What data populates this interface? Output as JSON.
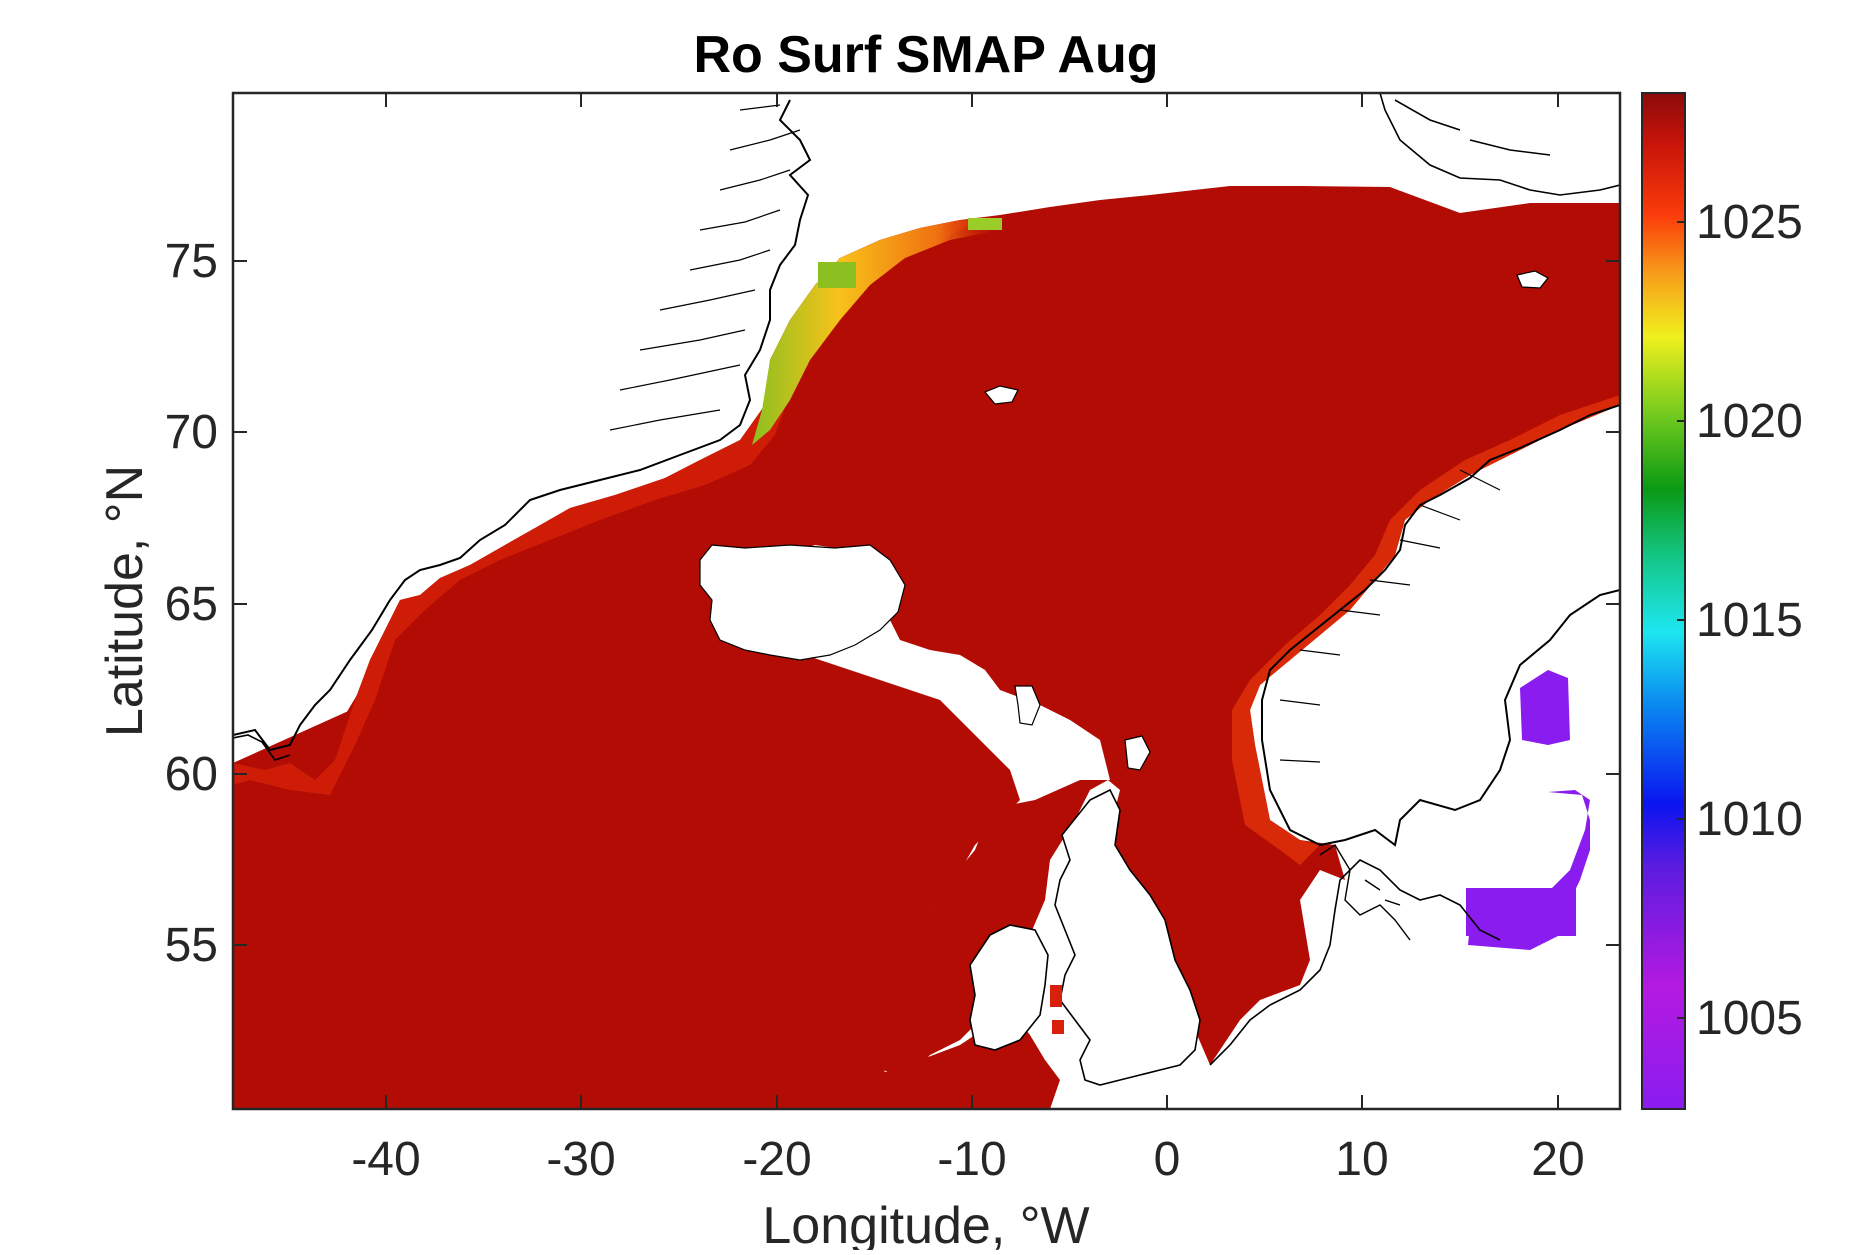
{
  "figure": {
    "title": "Ro Surf SMAP Aug",
    "xlabel": "Longitude, °W",
    "ylabel": "Latitude, °N"
  },
  "chart_data": {
    "type": "heatmap",
    "title": "Ro Surf SMAP Aug",
    "xlabel": "Longitude, °W",
    "ylabel": "Latitude, °N",
    "xlim": [
      -48,
      23
    ],
    "ylim": [
      50,
      80
    ],
    "xticks": [
      -40,
      -30,
      -20,
      -10,
      0,
      10,
      20
    ],
    "xtick_labels": [
      "-40",
      "-30",
      "-20",
      "-10",
      "0",
      "10",
      "20"
    ],
    "yticks": [
      55,
      60,
      65,
      70,
      75
    ],
    "ytick_labels": [
      "55",
      "60",
      "65",
      "70",
      "75"
    ],
    "colorbar": {
      "range": [
        1002.5,
        1028.0
      ],
      "ticks": [
        1005,
        1010,
        1015,
        1020,
        1025
      ],
      "tick_labels": [
        "1005",
        "1010",
        "1015",
        "1020",
        "1025"
      ],
      "colormap": "jet-like (purple → blue → cyan → green → yellow → red → dark red)"
    },
    "typical_open_ocean_value": 1027.5,
    "coastal_values_east_greenland": [
      1020,
      1023,
      1025
    ],
    "baltic_value": 1004,
    "grid": false,
    "legend": "none"
  },
  "colors": {
    "ocean_dark_red": "#b20c05",
    "ocean_red": "#c81a08",
    "coastal_orange": "#f07010",
    "coastal_yellow": "#f7c21a",
    "coastal_green": "#8cc020",
    "baltic_purple": "#8a1cf0",
    "land": "#ffffff",
    "coastline": "#000000"
  }
}
